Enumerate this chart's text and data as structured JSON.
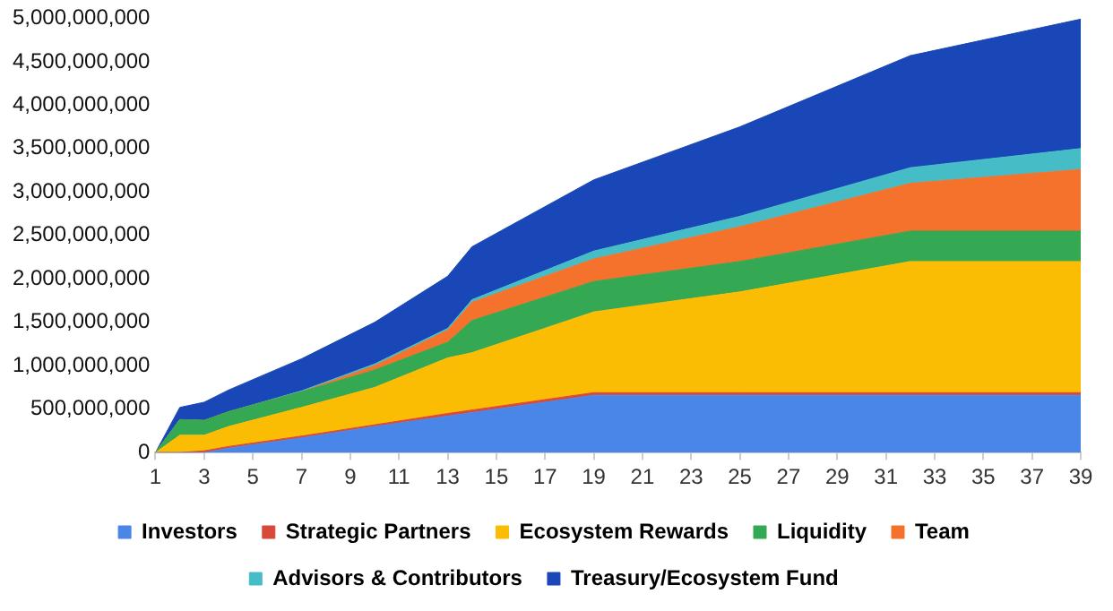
{
  "chart_data": {
    "type": "area",
    "stacked": true,
    "grid": false,
    "legend": "bottom",
    "x": [
      1,
      2,
      3,
      4,
      7,
      10,
      13,
      14,
      19,
      25,
      32,
      39
    ],
    "xlim": [
      1,
      39
    ],
    "xticks": [
      1,
      3,
      5,
      7,
      9,
      11,
      13,
      15,
      17,
      19,
      21,
      23,
      25,
      27,
      29,
      31,
      33,
      35,
      37,
      39
    ],
    "ylim": [
      0,
      5000000000
    ],
    "yticks": [
      0,
      {
        "value": 500000000,
        "label": "500,000,000"
      },
      {
        "value": 1000000000,
        "label": "1,000,000,000"
      },
      {
        "value": 1500000000,
        "label": "1,500,000,000"
      },
      {
        "value": 2000000000,
        "label": "2,000,000,000"
      },
      {
        "value": 2500000000,
        "label": "2,500,000,000"
      },
      {
        "value": 3000000000,
        "label": "3,000,000,000"
      },
      {
        "value": 3500000000,
        "label": "3,500,000,000"
      },
      {
        "value": 4000000000,
        "label": "4,000,000,000"
      },
      {
        "value": 4500000000,
        "label": "4,500,000,000"
      },
      {
        "value": 5000000000,
        "label": "5,000,000,000"
      }
    ],
    "series": [
      {
        "name": "Investors",
        "color": "#4a86e8",
        "values": [
          0,
          0,
          0,
          50000000,
          170000000,
          300000000,
          420000000,
          460000000,
          660000000,
          660000000,
          660000000,
          660000000
        ]
      },
      {
        "name": "Strategic Partners",
        "color": "#d9493a",
        "values": [
          0,
          0,
          20000000,
          20000000,
          20000000,
          20000000,
          30000000,
          30000000,
          30000000,
          30000000,
          30000000,
          30000000
        ]
      },
      {
        "name": "Ecosystem Rewards",
        "color": "#fbbc04",
        "values": [
          0,
          200000000,
          180000000,
          230000000,
          330000000,
          430000000,
          640000000,
          660000000,
          930000000,
          1160000000,
          1510000000,
          1510000000
        ]
      },
      {
        "name": "Liquidity",
        "color": "#34a853",
        "values": [
          0,
          180000000,
          170000000,
          170000000,
          180000000,
          200000000,
          180000000,
          370000000,
          350000000,
          350000000,
          350000000,
          350000000
        ]
      },
      {
        "name": "Team",
        "color": "#f4722b",
        "values": [
          0,
          0,
          0,
          0,
          0,
          50000000,
          140000000,
          210000000,
          260000000,
          400000000,
          550000000,
          710000000
        ]
      },
      {
        "name": "Advisors & Contributors",
        "color": "#46bdc6",
        "values": [
          0,
          0,
          0,
          0,
          10000000,
          20000000,
          20000000,
          30000000,
          90000000,
          120000000,
          180000000,
          240000000
        ]
      },
      {
        "name": "Treasury/Ecosystem Fund",
        "color": "#1a47b8",
        "values": [
          0,
          140000000,
          210000000,
          250000000,
          370000000,
          480000000,
          600000000,
          610000000,
          820000000,
          1030000000,
          1290000000,
          1490000000
        ]
      }
    ]
  }
}
